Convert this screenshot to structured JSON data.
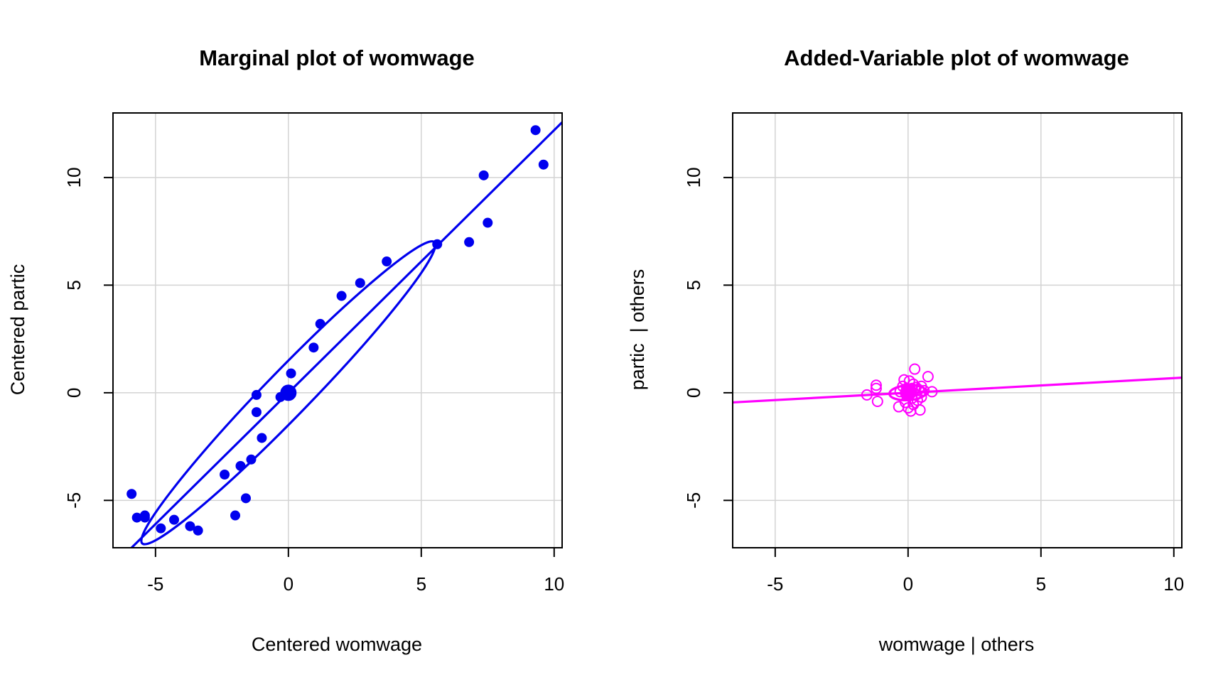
{
  "chart_data": [
    {
      "type": "scatter",
      "title": "Marginal plot of womwage",
      "xlabel": "Centered womwage",
      "ylabel": "Centered partic",
      "xlim": [
        -6.6,
        10.3
      ],
      "ylim": [
        -7.2,
        13.0
      ],
      "x_ticks": [
        -5,
        0,
        5,
        10
      ],
      "y_ticks": [
        -5,
        0,
        5,
        10
      ],
      "grid": true,
      "color": "#0000ee",
      "points": [
        [
          -5.9,
          -4.7
        ],
        [
          -5.7,
          -5.8
        ],
        [
          -5.4,
          -5.7
        ],
        [
          -5.4,
          -5.8
        ],
        [
          -4.8,
          -6.3
        ],
        [
          -4.3,
          -5.9
        ],
        [
          -3.7,
          -6.2
        ],
        [
          -3.4,
          -6.4
        ],
        [
          -2.4,
          -3.8
        ],
        [
          -2.0,
          -5.7
        ],
        [
          -1.8,
          -3.4
        ],
        [
          -1.6,
          -4.9
        ],
        [
          -1.4,
          -3.1
        ],
        [
          -1.2,
          -0.1
        ],
        [
          -1.2,
          -0.9
        ],
        [
          -1.0,
          -2.1
        ],
        [
          -0.3,
          -0.2
        ],
        [
          0.1,
          0.9
        ],
        [
          0.95,
          2.1
        ],
        [
          1.2,
          3.2
        ],
        [
          2.0,
          4.5
        ],
        [
          2.7,
          5.1
        ],
        [
          3.7,
          6.1
        ],
        [
          5.6,
          6.9
        ],
        [
          6.8,
          7.0
        ],
        [
          7.35,
          10.1
        ],
        [
          7.5,
          7.9
        ],
        [
          9.3,
          12.2
        ],
        [
          9.6,
          10.6
        ]
      ],
      "center_point": [
        0,
        0
      ],
      "fit_line": {
        "intercept": 0,
        "slope": 1.22
      },
      "ellipse": {
        "center": [
          0,
          0
        ],
        "tips": [
          [
            -5.5,
            -7.1
          ],
          [
            5.5,
            6.9
          ]
        ],
        "minor_semi_axis": 0.85
      }
    },
    {
      "type": "scatter",
      "title": "Added-Variable plot of womwage",
      "xlabel": "womwage | others",
      "ylabel": "partic  | others",
      "xlim": [
        -6.6,
        10.3
      ],
      "ylim": [
        -7.2,
        13.0
      ],
      "x_ticks": [
        -5,
        0,
        5,
        10
      ],
      "y_ticks": [
        -5,
        0,
        5,
        10
      ],
      "grid": true,
      "color": "#ff00ff",
      "points": [
        [
          -1.55,
          -0.1
        ],
        [
          -1.2,
          0.35
        ],
        [
          -1.2,
          0.2
        ],
        [
          -1.15,
          -0.4
        ],
        [
          -0.35,
          -0.65
        ],
        [
          -0.3,
          0.05
        ],
        [
          -0.2,
          0.3
        ],
        [
          -0.15,
          0.6
        ],
        [
          -0.1,
          -0.45
        ],
        [
          -0.05,
          0.2
        ],
        [
          0.0,
          -0.7
        ],
        [
          0.05,
          0.55
        ],
        [
          0.1,
          -0.85
        ],
        [
          0.1,
          0.1
        ],
        [
          0.15,
          -0.25
        ],
        [
          0.2,
          0.4
        ],
        [
          0.2,
          -0.55
        ],
        [
          0.25,
          1.1
        ],
        [
          0.3,
          0.25
        ],
        [
          0.3,
          -0.1
        ],
        [
          0.35,
          -0.35
        ],
        [
          0.4,
          0.15
        ],
        [
          0.45,
          -0.8
        ],
        [
          0.5,
          0.3
        ],
        [
          0.5,
          -0.2
        ],
        [
          0.6,
          0.1
        ],
        [
          0.75,
          0.75
        ],
        [
          0.9,
          0.05
        ],
        [
          0.15,
          0.2
        ]
      ],
      "center_point": [
        0,
        0
      ],
      "fit_line": {
        "intercept": 0,
        "slope": 0.068
      },
      "ellipse": {
        "center": [
          0,
          0
        ],
        "tips": [
          [
            -0.7,
            -0.05
          ],
          [
            0.7,
            0.05
          ]
        ],
        "minor_semi_axis": 0.28
      }
    }
  ]
}
